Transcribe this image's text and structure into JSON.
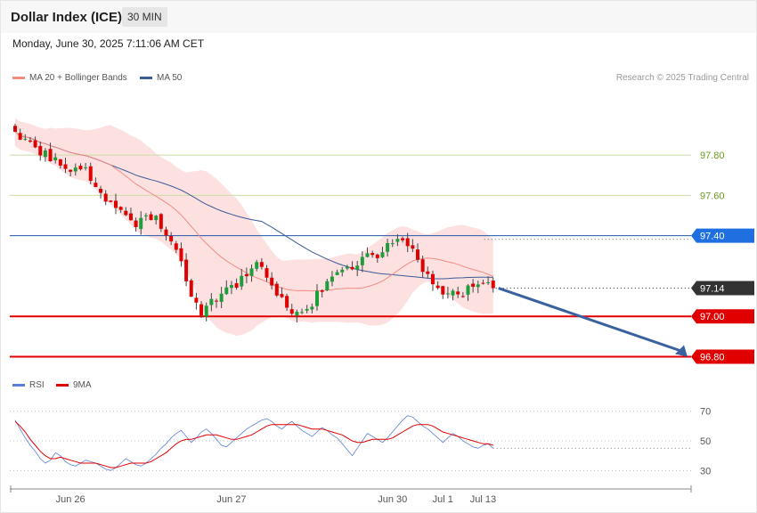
{
  "header": {
    "title": "Dollar Index (ICE)",
    "timeframe": "30 MIN"
  },
  "datetime": "Monday, June 30, 2025 7:11:06 AM CET",
  "legend_price": [
    {
      "label": "MA 20 + Bollinger Bands",
      "color": "#f28b82"
    },
    {
      "label": "MA 50",
      "color": "#3a5a98"
    }
  ],
  "legend_rsi": [
    {
      "label": "RSI",
      "color": "#5b7fd6"
    },
    {
      "label": "9MA",
      "color": "#e00000"
    }
  ],
  "credit": "Research © 2025 Trading Central",
  "colors": {
    "up": "#1e9e3a",
    "down": "#e00000",
    "band_fill": "#fde1e1",
    "ma20": "#f28b82",
    "ma50": "#3a5a98",
    "resistance": "#c9dca5",
    "pivot": "#2255aa",
    "support": "#e00000",
    "last": "#333333",
    "arrow": "#3a62a0"
  },
  "chart_data": [
    {
      "type": "candlestick",
      "price_range": [
        96.78,
        97.92
      ],
      "bar_count": 96,
      "seed": 20250630,
      "path": [
        [
          0,
          97.92
        ],
        [
          4,
          97.85
        ],
        [
          9,
          97.78
        ],
        [
          13,
          97.73
        ],
        [
          17,
          97.72
        ],
        [
          21,
          97.6
        ],
        [
          25,
          97.52
        ],
        [
          29,
          97.46
        ],
        [
          33,
          97.5
        ],
        [
          37,
          97.38
        ],
        [
          41,
          97.18
        ],
        [
          44,
          97.0
        ],
        [
          47,
          97.07
        ],
        [
          50,
          97.12
        ],
        [
          54,
          97.18
        ],
        [
          58,
          97.28
        ],
        [
          62,
          97.12
        ],
        [
          66,
          97.0
        ],
        [
          70,
          97.05
        ],
        [
          74,
          97.16
        ],
        [
          78,
          97.22
        ],
        [
          82,
          97.28
        ],
        [
          86,
          97.3
        ],
        [
          90,
          97.38
        ],
        [
          94,
          97.34
        ],
        [
          98,
          97.2
        ],
        [
          102,
          97.12
        ],
        [
          106,
          97.1
        ],
        [
          110,
          97.18
        ],
        [
          114,
          97.14
        ]
      ],
      "indicators": [
        "MA 20 + Bollinger Bands",
        "MA 50"
      ],
      "levels": [
        {
          "label": "97.80",
          "value": 97.8,
          "type": "resistance"
        },
        {
          "label": "97.60",
          "value": 97.6,
          "type": "resistance"
        },
        {
          "label": "97.40",
          "value": 97.4,
          "type": "pivot"
        },
        {
          "label": "97.14",
          "value": 97.14,
          "type": "last"
        },
        {
          "label": "97.00",
          "value": 97.0,
          "type": "support"
        },
        {
          "label": "96.80",
          "value": 96.8,
          "type": "support"
        }
      ],
      "forecast_arrow": {
        "from": 97.14,
        "to": 96.8
      }
    },
    {
      "type": "line",
      "series": [
        {
          "name": "RSI",
          "values": [
            64,
            58,
            52,
            47,
            43,
            38,
            35,
            37,
            42,
            40,
            36,
            34,
            33,
            35,
            37,
            36,
            35,
            33,
            31,
            30,
            32,
            35,
            38,
            36,
            34,
            33,
            35,
            38,
            41,
            45,
            48,
            52,
            55,
            57,
            53,
            49,
            52,
            56,
            58,
            55,
            51,
            47,
            46,
            49,
            52,
            55,
            58,
            60,
            62,
            64,
            65,
            63,
            60,
            58,
            61,
            63,
            60,
            57,
            55,
            53,
            56,
            59,
            57,
            54,
            52,
            48,
            44,
            40,
            45,
            50,
            55,
            53,
            51,
            49,
            52,
            56,
            60,
            64,
            67,
            66,
            63,
            60,
            58,
            55,
            52,
            49,
            52,
            55,
            53,
            50,
            48,
            46,
            45,
            47,
            48,
            45
          ]
        },
        {
          "name": "9MA",
          "values": [
            63,
            60,
            56,
            51,
            47,
            43,
            40,
            38,
            38,
            39,
            38,
            37,
            36,
            35,
            35,
            35,
            35,
            34,
            33,
            32,
            32,
            33,
            34,
            35,
            35,
            35,
            35,
            36,
            38,
            40,
            42,
            45,
            48,
            50,
            51,
            51,
            52,
            53,
            54,
            54,
            54,
            53,
            52,
            51,
            51,
            52,
            53,
            54,
            56,
            58,
            60,
            61,
            61,
            61,
            61,
            61,
            61,
            60,
            59,
            58,
            58,
            58,
            57,
            56,
            55,
            54,
            52,
            50,
            49,
            49,
            50,
            51,
            51,
            51,
            51,
            52,
            54,
            56,
            58,
            60,
            61,
            61,
            61,
            60,
            58,
            56,
            55,
            54,
            53,
            52,
            51,
            50,
            49,
            48,
            48,
            47
          ]
        }
      ],
      "y_ticks": [
        "70",
        "50",
        "30"
      ],
      "ylim": [
        20,
        80
      ]
    }
  ],
  "x_axis": {
    "ticks": [
      {
        "label": "Jun 26",
        "bar": 11
      },
      {
        "label": "Jun 27",
        "bar": 43
      },
      {
        "label": "Jun 30",
        "bar": 75
      },
      {
        "label": "Jul 1",
        "bar": 85
      },
      {
        "label": "Jul 13",
        "bar": 93
      }
    ]
  }
}
